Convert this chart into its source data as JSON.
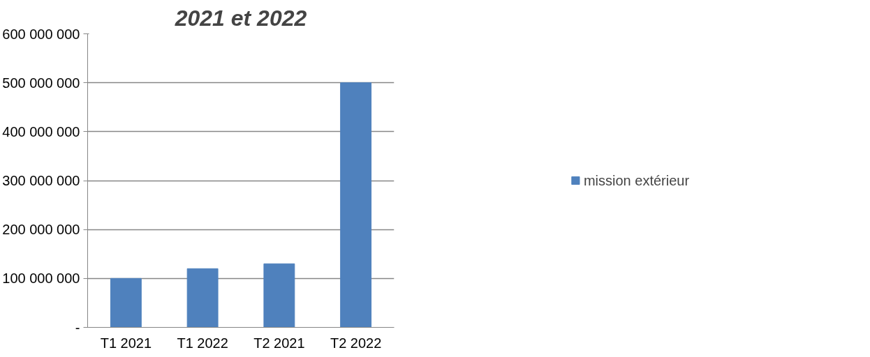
{
  "chart_data": {
    "type": "bar",
    "title": "2021 et 2022",
    "categories": [
      "T1 2021",
      "T1 2022",
      "T2 2021",
      "T2 2022"
    ],
    "series": [
      {
        "name": "mission extérieur",
        "color": "#4f81bd",
        "values": [
          100000000,
          120000000,
          130000000,
          500000000
        ]
      }
    ],
    "ylim": [
      0,
      600000000
    ],
    "yticks": [
      {
        "value": 0,
        "label": "-"
      },
      {
        "value": 100000000,
        "label": "100 000 000"
      },
      {
        "value": 200000000,
        "label": "200 000 000"
      },
      {
        "value": 300000000,
        "label": "300 000 000"
      },
      {
        "value": 400000000,
        "label": "400 000 000"
      },
      {
        "value": 500000000,
        "label": "500 000 000"
      },
      {
        "value": 600000000,
        "label": "600 000 000"
      }
    ],
    "grid": "y",
    "legend": "right"
  }
}
